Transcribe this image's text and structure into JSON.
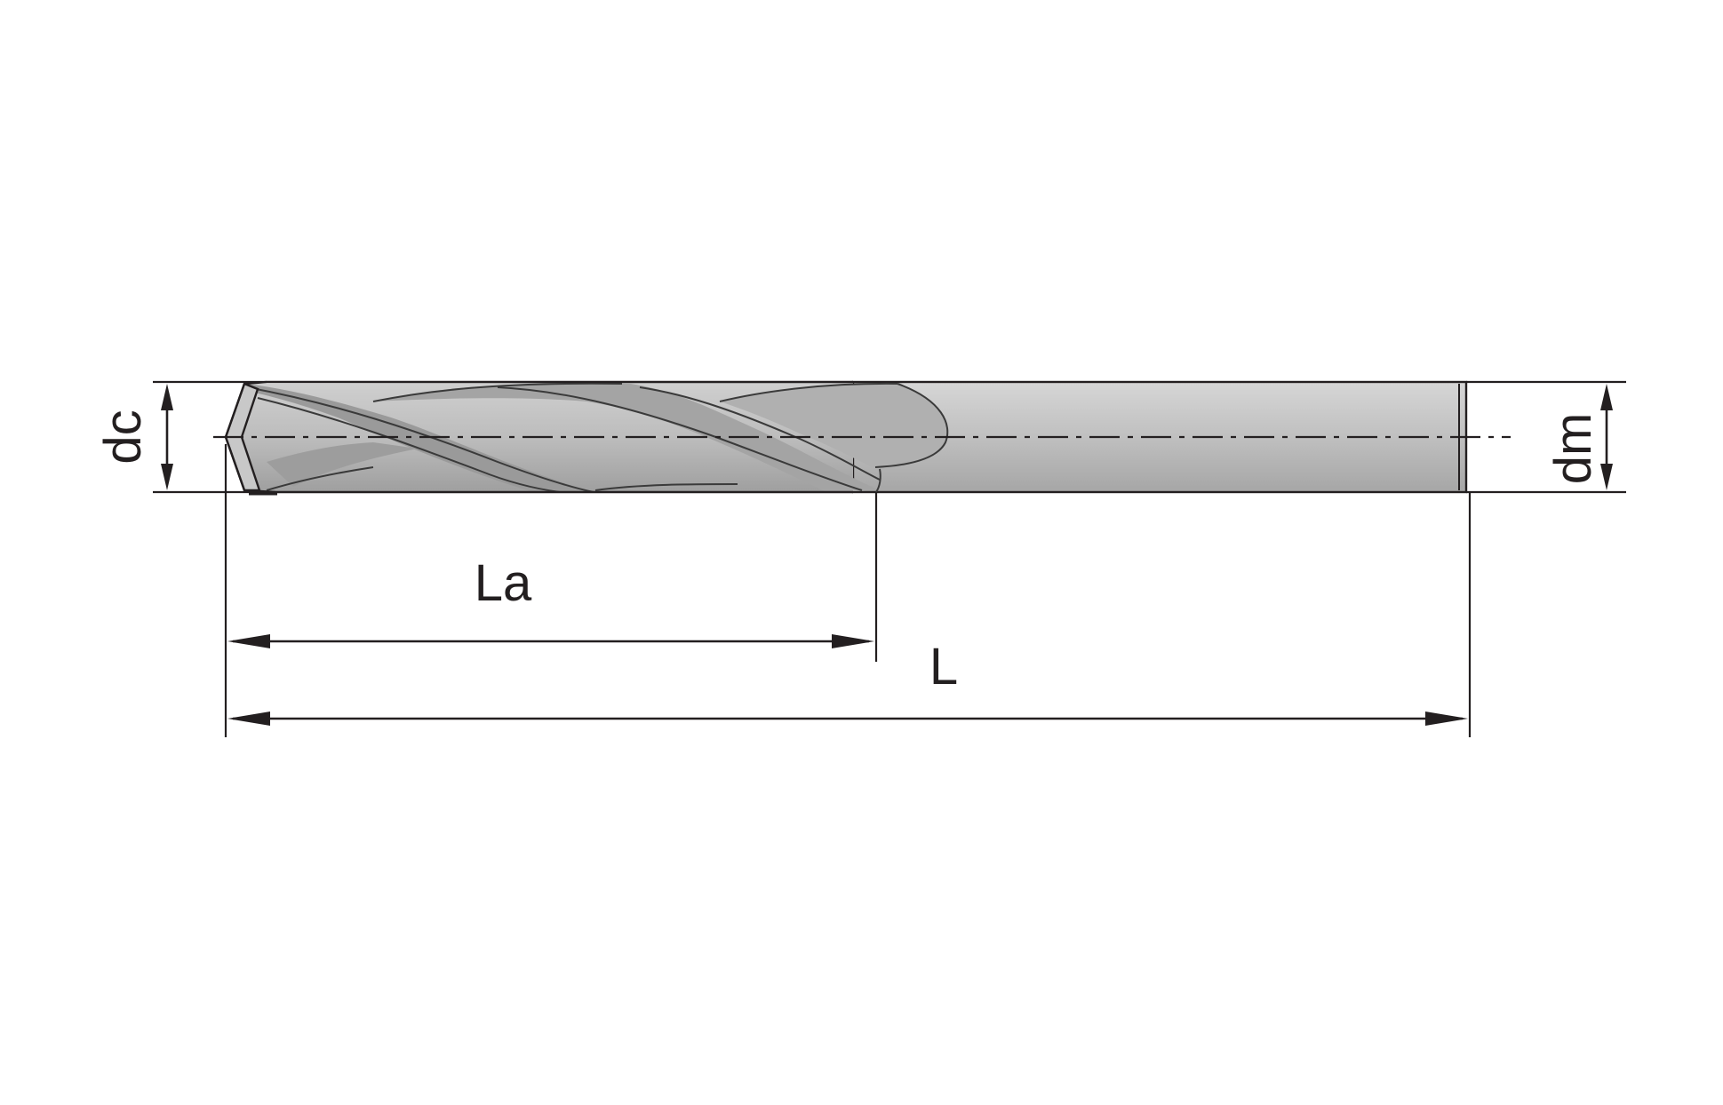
{
  "drawing": {
    "subject": "twist drill",
    "colors": {
      "line": "#231f20",
      "body_light": "#d2d2d2",
      "body_mid": "#b4b4b4",
      "body_dark": "#8e8e8e",
      "background": "#ffffff"
    },
    "labels": {
      "dc": "dc",
      "dm": "dm",
      "La": "La",
      "L": "L"
    }
  }
}
